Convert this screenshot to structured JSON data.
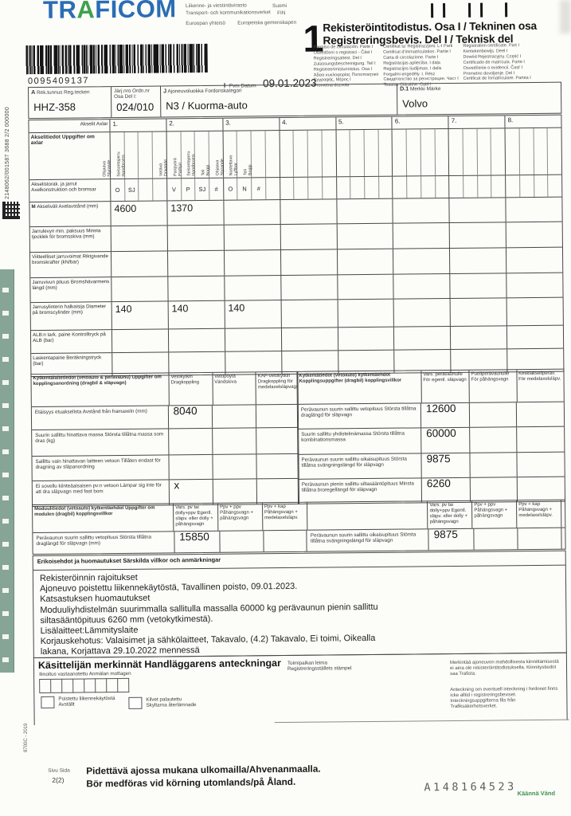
{
  "colors": {
    "logo_blue": "#2a6db5",
    "logo_green": "#3fa14e",
    "strip_green": "#86a595",
    "turn_green": "#3f9050"
  },
  "header": {
    "logo_part1": "TR",
    "logo_part2": "A",
    "logo_part3": "FICOM",
    "agency_fi": "Liikenne- ja viestintävirasto",
    "agency_sv": "Transport- och kommunikationsverket",
    "country_name": "Suomi",
    "country_code": "FIN",
    "eu_fi": "Euroopan yhteisö",
    "eu_sv": "Europeiska gemenskapen",
    "barcode_number": "0095409137",
    "part_number": "1",
    "title_fi": "Rekisteröintitodistus. Osa I / Tekninen osa",
    "title_sv": "Registreringsbevis. Del I / Teknisk del",
    "languages": {
      "col1": [
        "Permiso de circulación. Parte I",
        "Osvědčení o registraci - Část I",
        "Registreringsattest. Del I",
        "Zulassungsbescheinigung. Teil I",
        "Registreerimistunnistus. Osa I",
        "Άδεια κυκλοφορίας Πιστοποιητικό",
        "Εγγραφής, Μέρος Ι",
        "Prometna dozvola"
      ],
      "col2": [
        "Ċertifikat ta' Reġistrazzjoni. L-I Parti",
        "Certificat d'immatriculation. Partie I",
        "Carta di circolazione. Parte I",
        "Reģistrācijas apliecība. I daļa",
        "Registracijos liudijimas. I dalis",
        "Forgalmi engedély. I. Rész",
        "Свидетелство за регистрация. Част I",
        "Teastas Cláraithe. Cuid I"
      ],
      "col3": [
        "Registration certificate. Part I",
        "Kentekenbewijs. Deel I",
        "Dowód Rejestracyjny. Część I",
        "Certificado de matrícula. Parte I",
        "Osvedčenie o evidencii. Časť I",
        "Prometno dovoljenje. Del I",
        "Certificat de înmatriculare. Partea I"
      ]
    },
    "date_prefix": "I",
    "date_label": "Pvm Datum",
    "date_value": "09.01.2023"
  },
  "id_row": {
    "reg_prefix": "A",
    "reg_label": "Rek.tunnus Reg.tecken",
    "reg_value": "HHZ-358",
    "order_label": "Järj.nro Ordn.nr",
    "order_label2": "Osa Del I:",
    "order_value": "024/010",
    "class_prefix": "J",
    "class_label": "Ajoneuvoluokka Fordonskategori",
    "class_value": "N3 / Kuorma-auto",
    "make_prefix": "D.1",
    "make_label": "Merkki Märke",
    "make_value": "Volvo"
  },
  "axle_table": {
    "corner_label": "Akselit Axlar",
    "info_label": "Akselitiedot Uppgifter om axlar",
    "columns": [
      "1.",
      "2.",
      "3.",
      "4.",
      "5.",
      "6.",
      "7.",
      "8."
    ],
    "vertical_labels": [
      [
        [
          "Ohjaava",
          "Styrande"
        ],
        [
          "Seisontajarru",
          "Handbroms"
        ],
        null,
        null
      ],
      [
        [
          "Vetävä",
          "Drivande"
        ],
        [
          "Paripyörä",
          "Parhjul"
        ],
        [
          "Seisontajarru",
          "Handbroms"
        ],
        [
          "Teli",
          "Boggi"
        ]
      ],
      [
        [
          "Ohjaava",
          "Styrande"
        ],
        [
          "Nostettava",
          "Lyftbar"
        ],
        [
          "Teli",
          "Boggi"
        ],
        null
      ],
      null,
      null,
      null,
      null,
      null
    ],
    "construction_row": {
      "label": "Akselistorak. ja jarrut Axelkonstruktion och bromsar",
      "sub_values": [
        [
          "O",
          "SJ",
          "",
          ""
        ],
        [
          "V",
          "P",
          "SJ",
          "#"
        ],
        [
          "O",
          "N",
          "#",
          ""
        ],
        null,
        null,
        null,
        null,
        null
      ]
    },
    "rows": [
      {
        "bold_prefix": "M",
        "label": "Akseliväli Axelavstånd (mm)",
        "values": [
          "4600",
          "1370",
          "",
          "",
          "",
          "",
          "",
          ""
        ]
      },
      {
        "label": "Jarrulevyn min. paksuus Minsta tjocklek för bromsskiva (mm)",
        "values": [
          "",
          "",
          "",
          "",
          "",
          "",
          "",
          ""
        ]
      },
      {
        "label": "Viitteelliset jarruvoimat Riktgivande bromskrafter (kN/bar)",
        "values": [
          "",
          "",
          "",
          "",
          "",
          "",
          "",
          ""
        ]
      },
      {
        "label": "Jarruvivun pituus Bromshävarmens längd (mm)",
        "values": [
          "",
          "",
          "",
          "",
          "",
          "",
          "",
          ""
        ]
      },
      {
        "label": "Jarrusylinterin halkaisija Diameter på bromscylinder (mm)",
        "values": [
          "140",
          "140",
          "140",
          "",
          "",
          "",
          "",
          ""
        ]
      },
      {
        "label": "ALB:n tark. paine Kontrolltryck på ALB (bar)",
        "values": [
          "",
          "",
          "",
          "",
          "",
          "",
          "",
          ""
        ]
      },
      {
        "label": "Laskentapaine Beräkningstryck (bar)",
        "values": [
          "",
          "",
          "",
          "",
          "",
          "",
          "",
          ""
        ]
      }
    ]
  },
  "coupling_device": {
    "header": "Kytkentälaitetiedot (vetoauto & perävaunu) Uppgifter om kopplingsanordning (dragbil & släpvagn)",
    "columns": [
      "Vetokytkin Dragkoppling",
      "Vetopöytä Vändskiva",
      "KAP-vetokytkin Dragkoppling för medelaxelsläpvagn"
    ],
    "rows": [
      {
        "label": "Etäisyys etuakselista Avstånd från framaxeln (mm)",
        "values": [
          "8040",
          "",
          ""
        ]
      },
      {
        "label": "Suurin sallittu hinattava massa Största tillåtna massa som dras (kg)",
        "values": [
          "",
          "",
          ""
        ]
      },
      {
        "label": "Sallittu vain hinattavan laitteen vetoon Tillåten endast för dragning av släpanordning",
        "values": [
          "",
          "",
          ""
        ]
      },
      {
        "label": "Ei sovellu kiinteäaisaisen pv:n vetoon Lämpar sig inte för att dra släpvagn med fast bom",
        "values": [
          "x",
          "",
          ""
        ]
      }
    ]
  },
  "coupling_terms": {
    "header": "Kytkentätiedot (vetoauto) kytkentäehdot Kopplingsuppgifter (dragbil) kopplingsvillkor",
    "columns": [
      "Vars. perävaunulle För egentl. släpvagn",
      "Puoliperävaunulle För påhängsvagn",
      "Keskiakseliperäv. För medelaxelsläpv."
    ],
    "rows": [
      {
        "label": "Perävaunun suurin sallittu vetopituus Största tillåtna draglängd för släpvagn",
        "values": [
          "12600",
          "",
          ""
        ]
      },
      {
        "label": "Suurin sallittu yhdistelmämassa Största tillåtna kombinationsmassa",
        "values": [
          "60000",
          "",
          ""
        ]
      },
      {
        "label": "Perävaunun suurin sallittu oikaisupituus Största tillåtna svängningslängd för släpvagn",
        "values": [
          "9875",
          "",
          ""
        ]
      },
      {
        "label": "Perävaunun pienin sallittu siltasääntöpituus Minsta tillåtna broregellängd för släpvagn",
        "values": [
          "6260",
          "",
          ""
        ]
      }
    ]
  },
  "module_info": {
    "header": "Moduulitiedot (vetoauto) kytkentäehdot Uppgifter om modulen (dragbil) kopplingsvillkor",
    "columns": [
      "Vars. pv tai dolly+ppv Egentl. släpv. eller dolly + påhängsvagn",
      "Ppv + ppv Påhängsvagn + påhängsvagn",
      "Ppv + kap Påhängsvagn + medelaxelsläpv."
    ],
    "row_label": "Perävaunun suurin sallittu vetopituus Största tillåtna draglängd för släpvagn (mm)",
    "row_value": "15850",
    "right_label": "Perävaunun suurin sallittu oikaisupituus Största tillåtna svängningslängd för släpvagn",
    "right_value": "9875"
  },
  "special_conditions": {
    "header": "Erikoisehdot ja huomautukset Särskilda villkor och anmärkningar",
    "lines": [
      "Rekisteröinnin rajoitukset",
      "Ajoneuvo poistettu liikennekäytöstä, Tavallinen poisto, 09.01.2023.",
      "Katsastuksen huomautukset",
      "Moduuliyhdistelmän suurimmalla sallitulla massalla 60000 kg perävaunun pienin sallittu",
      "siltasääntöpituus 6260 mm (vetokytkimestä).",
      "Lisälaitteet:Lämmityslaite",
      "Korjauskehotus: Valaisimet ja sähkölaitteet, Takavalo, (4.2) Takavalo, Ei toimi, Oikealla",
      "lakana, Korjattava 29.10.2022 mennessä"
    ]
  },
  "handler": {
    "title": "Käsittelijän merkinnät Handläggarens anteckningar",
    "received_label": "Ilmoitus vastaanotettu Anmälan mottagen",
    "stamp_label_fi": "Toimipaikan leima",
    "stamp_label_sv": "Registreringsställets stämpel",
    "note_fi": "Merkintää ajoneuvon mahdollisesta kiinnittämisestä ei aina ole rekisteröintitodistuksella. Kiinnitystiedot saa Trafista.",
    "note_sv": "Anteckning om eventuell inteckning i fordonet finns icke alltid i registreringsbeviset. Inteckningsuppgifterna fås från Trafiksäkerhetsverket.",
    "checkbox1_fi": "Poistettu liikennekäytöstä",
    "checkbox1_sv": "Avställt",
    "checkbox2_fi": "Kilvet palautettu",
    "checkbox2_sv": "Skyltarna återlämnade"
  },
  "footer": {
    "page_label": "Sivu Sida",
    "page_value": "2(2)",
    "keep_fi": "Pidettävä ajossa mukana ulkomailla/Ahvenanmaalla.",
    "keep_sv": "Bör medföras vid körning utomlands/på Åland.",
    "doc_id": "A148164523",
    "turn_fi": "Käännä",
    "turn_sv": "Vänd"
  },
  "edge": {
    "serial": "2148062/001587 3688 2/2 000000",
    "print_code": "8700C - 2019"
  }
}
